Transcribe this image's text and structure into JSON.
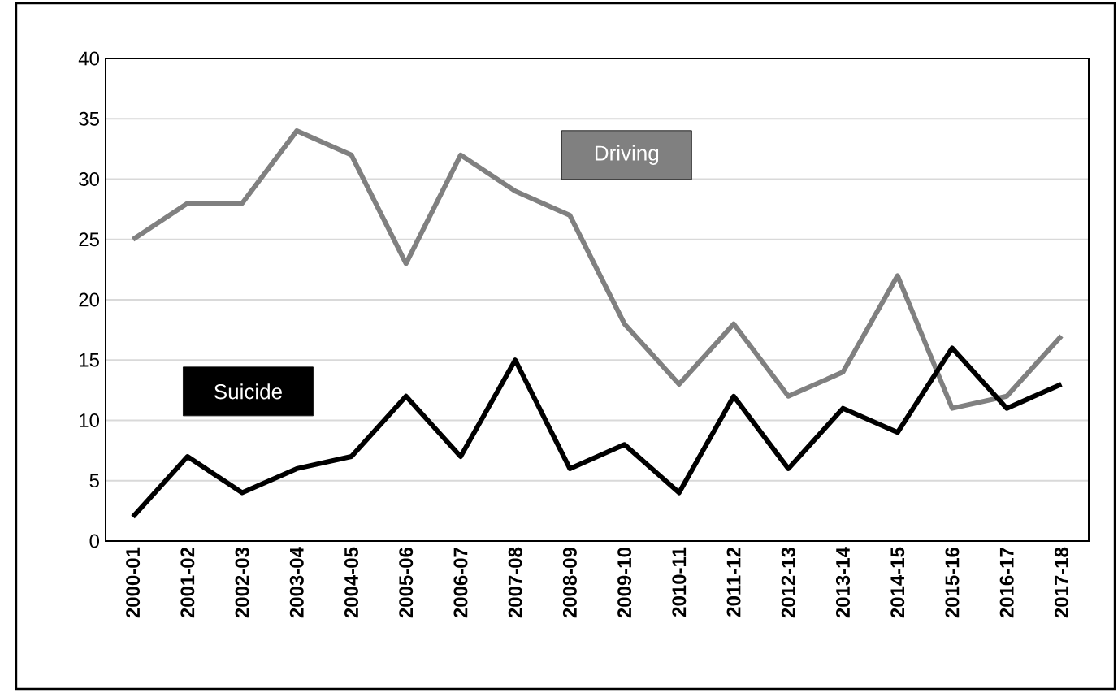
{
  "chart_data": {
    "type": "line",
    "categories": [
      "2000-01",
      "2001-02",
      "2002-03",
      "2003-04",
      "2004-05",
      "2005-06",
      "2006-07",
      "2007-08",
      "2008-09",
      "2009-10",
      "2010-11",
      "2011-12",
      "2012-13",
      "2013-14",
      "2014-15",
      "2015-16",
      "2016-17",
      "2017-18"
    ],
    "series": [
      {
        "name": "Driving",
        "color": "#808080",
        "values": [
          25,
          28,
          28,
          34,
          32,
          23,
          32,
          29,
          27,
          18,
          13,
          18,
          12,
          14,
          22,
          11,
          12,
          17
        ]
      },
      {
        "name": "Suicide",
        "color": "#000000",
        "values": [
          2,
          7,
          4,
          6,
          7,
          12,
          7,
          15,
          6,
          8,
          4,
          12,
          6,
          11,
          9,
          16,
          11,
          13
        ]
      }
    ],
    "ylim": [
      0,
      40
    ],
    "yticks": [
      0,
      5,
      10,
      15,
      20,
      25,
      30,
      35,
      40
    ],
    "grid": "y",
    "marker": "none",
    "line_style": "solid"
  }
}
